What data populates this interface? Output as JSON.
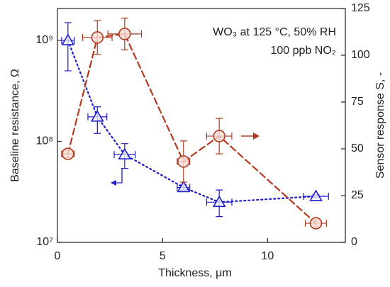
{
  "chart_data": {
    "type": "scatter-line",
    "x_label": "Thickness, μm",
    "y_label": "Baseline resistance, Ω",
    "y2_label": "Sensor response S, -",
    "annotations": [
      "WO₃ at 125 °C, 50% RH",
      "100 ppb NO₂"
    ],
    "x": [
      0.5,
      1.9,
      3.2,
      6.0,
      7.7,
      12.3
    ],
    "xlim": [
      0,
      13.7
    ],
    "xticks": [
      0,
      5,
      10
    ],
    "ylim": [
      10000000,
      2070000000
    ],
    "log_y": true,
    "yticks": [
      {
        "value": 10000000,
        "label": "10⁷"
      },
      {
        "value": 100000000,
        "label": "10⁸"
      },
      {
        "value": 1000000000,
        "label": "10⁹"
      }
    ],
    "y2lim": [
      0,
      125
    ],
    "y2ticks": [
      0,
      25,
      50,
      75,
      100,
      125
    ],
    "series": [
      {
        "name": "Baseline resistance",
        "color": "#1c1ccc",
        "marker": "triangle",
        "line": "dotted",
        "values": [
          1000000000,
          175000000,
          74000000,
          35000000,
          25000000,
          28600000
        ],
        "errors_minus": [
          500000000,
          55000000,
          20000000,
          2000000,
          7000000,
          1000000
        ],
        "errors_plus": [
          500000000,
          45000000,
          21000000,
          2000000,
          8000000,
          1000000
        ],
        "xerrors": [
          0.3,
          0.45,
          0.5,
          0.3,
          0.6,
          0.6
        ]
      },
      {
        "name": "Sensor response",
        "color": "#b23a1e",
        "marker": "circle",
        "line": "dashed",
        "axis": "y2",
        "values": [
          47.3,
          109.5,
          111.4,
          43.2,
          56.8,
          10.2
        ],
        "errors_minus": [
          2,
          9,
          8.5,
          11,
          9.5,
          2
        ],
        "errors_plus": [
          2,
          9,
          8.5,
          11,
          9.5,
          2
        ],
        "xerrors": [
          0.3,
          0.7,
          0.8,
          0.3,
          0.6,
          0.5
        ]
      }
    ]
  }
}
